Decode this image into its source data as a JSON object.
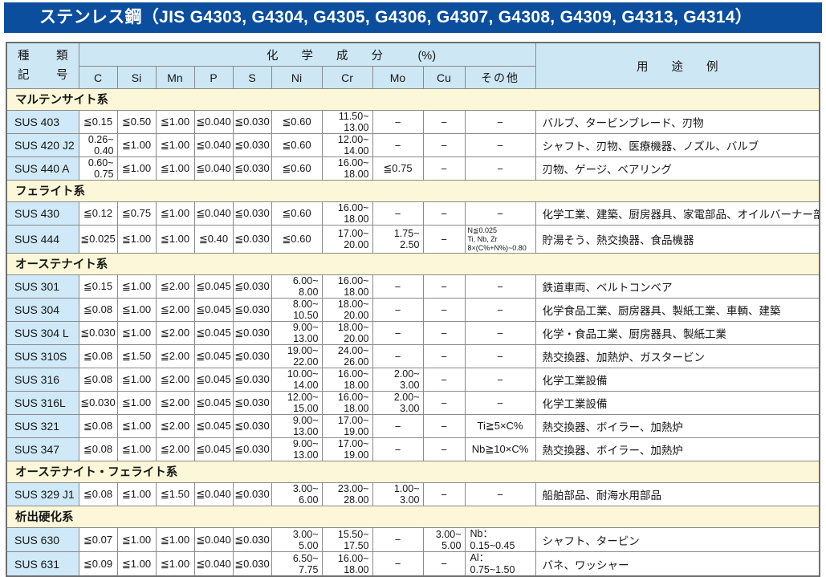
{
  "title": "ステンレス鋼（JIS G4303, G4304, G4305, G4306, G4307, G4308, G4309, G4313, G4314）",
  "table": {
    "header": {
      "kind_line1": "種類",
      "kind_line2": "記号",
      "chem_group": "化　　学　　成　　分　　　(%)",
      "chem_cols": [
        "C",
        "Si",
        "Mn",
        "P",
        "S",
        "Ni",
        "Cr",
        "Mo",
        "Cu",
        "その他"
      ],
      "usage": "用　　途　　例"
    },
    "sections": [
      {
        "name": "マルテンサイト系",
        "rows": [
          {
            "code": "SUS 403",
            "cells": [
              "≦0.15",
              "≦0.50",
              "≦1.00",
              "≦0.040",
              "≦0.030",
              "≦0.60",
              [
                "11.50~",
                "13.00"
              ],
              "−",
              "−",
              "−"
            ],
            "usage": "バルブ、タービンブレード、刃物"
          },
          {
            "code": "SUS 420 J2",
            "cells": [
              [
                "0.26~",
                "0.40"
              ],
              "≦1.00",
              "≦1.00",
              "≦0.040",
              "≦0.030",
              "≦0.60",
              [
                "12.00~",
                "14.00"
              ],
              "−",
              "−",
              "−"
            ],
            "usage": "シャフト、刃物、医療機器、ノズル、バルブ"
          },
          {
            "code": "SUS 440 A",
            "cells": [
              [
                "0.60~",
                "0.75"
              ],
              "≦1.00",
              "≦1.00",
              "≦0.040",
              "≦0.030",
              "≦0.60",
              [
                "16.00~",
                "18.00"
              ],
              "≦0.75",
              "−",
              "−"
            ],
            "usage": "刃物、ゲージ、ベアリング"
          }
        ]
      },
      {
        "name": "フェライト系",
        "rows": [
          {
            "code": "SUS 430",
            "cells": [
              "≦0.12",
              "≦0.75",
              "≦1.00",
              "≦0.040",
              "≦0.030",
              "≦0.60",
              [
                "16.00~",
                "18.00"
              ],
              "−",
              "−",
              "−"
            ],
            "usage": "化学工業、建築、厨房器具、家電部品、オイルバーナー部品"
          },
          {
            "code": "SUS 444",
            "cells": [
              "≦0.025",
              "≦1.00",
              "≦1.00",
              "≦0.40",
              "≦0.030",
              "≦0.60",
              [
                "17.00~",
                "20.00"
              ],
              [
                "1.75~",
                "2.50"
              ],
              "−",
              {
                "lines": [
                  "N≦0.025",
                  "Ti, Nb, Zr",
                  "8×(C%+N%)~0.80"
                ],
                "cls": "c-small"
              }
            ],
            "usage": "貯湯そう、熱交換器、食品機器"
          }
        ]
      },
      {
        "name": "オーステナイト系",
        "rows": [
          {
            "code": "SUS 301",
            "cells": [
              "≦0.15",
              "≦1.00",
              "≦2.00",
              "≦0.045",
              "≦0.030",
              [
                "6.00~",
                "8.00"
              ],
              [
                "16.00~",
                "18.00"
              ],
              "−",
              "−",
              "−"
            ],
            "usage": "鉄道車両、ベルトコンベア"
          },
          {
            "code": "SUS 304",
            "cells": [
              "≦0.08",
              "≦1.00",
              "≦2.00",
              "≦0.045",
              "≦0.030",
              [
                "8.00~",
                "10.50"
              ],
              [
                "18.00~",
                "20.00"
              ],
              "−",
              "−",
              "−"
            ],
            "usage": "化学食品工業、厨房器具、製紙工業、車輌、建築"
          },
          {
            "code": "SUS 304 L",
            "cells": [
              "≦0.030",
              "≦1.00",
              "≦2.00",
              "≦0.045",
              "≦0.030",
              [
                "9.00~",
                "13.00"
              ],
              [
                "18.00~",
                "20.00"
              ],
              "−",
              "−",
              "−"
            ],
            "usage": "化学・食品工業、厨房器具、製紙工業"
          },
          {
            "code": "SUS 310S",
            "cells": [
              "≦0.08",
              "≦1.50",
              "≦2.00",
              "≦0.045",
              "≦0.030",
              [
                "19.00~",
                "22.00"
              ],
              [
                "24.00~",
                "26.00"
              ],
              "−",
              "−",
              "−"
            ],
            "usage": "熱交換器、加熱炉、ガスタービン"
          },
          {
            "code": "SUS 316",
            "cells": [
              "≦0.08",
              "≦1.00",
              "≦2.00",
              "≦0.045",
              "≦0.030",
              [
                "10.00~",
                "14.00"
              ],
              [
                "16.00~",
                "18.00"
              ],
              [
                "2.00~",
                "3.00"
              ],
              "−",
              "−"
            ],
            "usage": "化学工業設備"
          },
          {
            "code": "SUS 316L",
            "cells": [
              "≦0.030",
              "≦1.00",
              "≦2.00",
              "≦0.045",
              "≦0.030",
              [
                "12.00~",
                "15.00"
              ],
              [
                "16.00~",
                "18.00"
              ],
              [
                "2.00~",
                "3.00"
              ],
              "−",
              "−"
            ],
            "usage": "化学工業設備"
          },
          {
            "code": "SUS 321",
            "cells": [
              "≦0.08",
              "≦1.00",
              "≦2.00",
              "≦0.045",
              "≦0.030",
              [
                "9.00~",
                "13.00"
              ],
              [
                "17.00~",
                "19.00"
              ],
              "−",
              "−",
              "Ti≧5×C%"
            ],
            "usage": "熱交換器、ボイラー、加熱炉"
          },
          {
            "code": "SUS 347",
            "cells": [
              "≦0.08",
              "≦1.00",
              "≦2.00",
              "≦0.045",
              "≦0.030",
              [
                "9.00~",
                "13.00"
              ],
              [
                "17.00~",
                "19.00"
              ],
              "−",
              "−",
              "Nb≧10×C%"
            ],
            "usage": "熱交換器、ボイラー、加熱炉"
          }
        ]
      },
      {
        "name": "オーステナイト・フェライト系",
        "rows": [
          {
            "code": "SUS 329 J1",
            "cells": [
              "≦0.08",
              "≦1.00",
              "≦1.50",
              "≦0.040",
              "≦0.030",
              [
                "3.00~",
                "6.00"
              ],
              [
                "23.00~",
                "28.00"
              ],
              [
                "1.00~",
                "3.00"
              ],
              "−",
              "−"
            ],
            "usage": "船舶部品、耐海水用部品"
          }
        ]
      },
      {
        "name": "析出硬化系",
        "rows": [
          {
            "code": "SUS 630",
            "cells": [
              "≦0.07",
              "≦1.00",
              "≦1.00",
              "≦0.040",
              "≦0.030",
              [
                "3.00~",
                "5.00"
              ],
              [
                "15.50~",
                "17.50"
              ],
              "−",
              [
                "3.00~",
                "5.00"
              ],
              {
                "lines": [
                  "Nb：",
                  "0.15~0.45"
                ],
                "cls": "c-left"
              }
            ],
            "usage": "シャフト、タービン"
          },
          {
            "code": "SUS 631",
            "cells": [
              "≦0.09",
              "≦1.00",
              "≦1.00",
              "≦0.040",
              "≦0.030",
              [
                "6.50~",
                "7.75"
              ],
              [
                "16.00~",
                "18.00"
              ],
              "−",
              "−",
              {
                "lines": [
                  "Al：",
                  "0.75~1.50"
                ],
                "cls": "c-left"
              }
            ],
            "usage": "バネ、ワッシャー"
          }
        ]
      }
    ]
  }
}
